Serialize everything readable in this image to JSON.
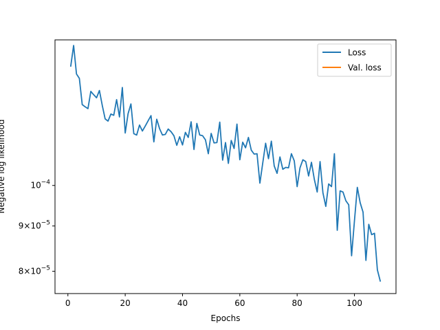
{
  "chart_data": {
    "type": "line",
    "xlabel": "Epochs",
    "ylabel": "Negative log likelihood",
    "y_scale": "log",
    "grid": false,
    "legend_placement": "top-right",
    "xlim": [
      -4.5,
      114.5
    ],
    "ylim": [
      7.55e-05,
      0.000146
    ],
    "x_ticks": [
      0,
      20,
      40,
      60,
      80,
      100
    ],
    "x_tick_labels": [
      "0",
      "20",
      "40",
      "60",
      "80",
      "100"
    ],
    "y_ticks": [
      8e-05,
      9e-05,
      0.0001
    ],
    "y_tick_labels": [
      {
        "base": "8×10",
        "exp": "−5"
      },
      {
        "base": "9×10",
        "exp": "−5"
      },
      {
        "base": "10",
        "exp": "−4"
      }
    ],
    "series": [
      {
        "name": "Loss",
        "color": "#1f77b4",
        "x": [
          1,
          2,
          3,
          4,
          5,
          6,
          7,
          8,
          9,
          10,
          11,
          12,
          13,
          14,
          15,
          16,
          17,
          18,
          19,
          20,
          21,
          22,
          23,
          24,
          25,
          26,
          27,
          28,
          29,
          30,
          31,
          32,
          33,
          34,
          35,
          36,
          37,
          38,
          39,
          40,
          41,
          42,
          43,
          44,
          45,
          46,
          47,
          48,
          49,
          50,
          51,
          52,
          53,
          54,
          55,
          56,
          57,
          58,
          59,
          60,
          61,
          62,
          63,
          64,
          65,
          66,
          67,
          68,
          69,
          70,
          71,
          72,
          73,
          74,
          75,
          76,
          77,
          78,
          79,
          80,
          81,
          82,
          83,
          84,
          85,
          86,
          87,
          88,
          89,
          90,
          91,
          92,
          93,
          94,
          95,
          96,
          97,
          98,
          99,
          100,
          101,
          102,
          103,
          104,
          105,
          106,
          107,
          108,
          109
        ],
        "values": [
          0.0001364,
          0.0001439,
          0.0001336,
          0.0001321,
          0.0001234,
          0.0001227,
          0.0001221,
          0.0001277,
          0.0001266,
          0.0001256,
          0.000128,
          0.0001231,
          0.0001189,
          0.0001182,
          0.0001204,
          0.00012,
          0.000125,
          0.0001195,
          0.000129,
          0.0001146,
          0.0001205,
          0.0001236,
          0.0001144,
          0.000114,
          0.000117,
          0.0001152,
          0.0001167,
          0.0001183,
          0.0001199,
          0.000112,
          0.0001188,
          0.0001159,
          0.000114,
          0.0001142,
          0.0001158,
          0.000115,
          0.0001138,
          0.000111,
          0.0001135,
          0.0001111,
          0.0001148,
          0.0001133,
          0.000118,
          0.0001098,
          0.0001175,
          0.000114,
          0.0001138,
          0.0001126,
          0.0001086,
          0.0001145,
          0.0001117,
          0.0001118,
          0.0001179,
          0.0001068,
          0.0001118,
          0.0001059,
          0.0001124,
          0.0001101,
          0.0001173,
          0.0001069,
          0.0001119,
          0.0001103,
          0.0001133,
          0.0001096,
          0.0001085,
          0.0001086,
          0.0001006,
          0.000106,
          0.0001116,
          0.0001072,
          0.0001122,
          0.0001052,
          0.0001032,
          0.0001077,
          0.0001043,
          0.0001048,
          0.0001047,
          0.0001086,
          0.0001066,
          9.97e-05,
          0.0001047,
          0.0001069,
          0.0001064,
          0.0001025,
          0.0001062,
          0.0001016,
          9.83e-05,
          0.0001064,
          9.81e-05,
          9.47e-05,
          0.0001004,
          9.97e-05,
          0.0001086,
          8.9e-05,
          9.86e-05,
          9.83e-05,
          9.61e-05,
          9.51e-05,
          8.33e-05,
          9.12e-05,
          9.95e-05,
          9.56e-05,
          9.33e-05,
          8.23e-05,
          9.04e-05,
          8.8e-05,
          8.83e-05,
          8.03e-05,
          7.8e-05
        ]
      },
      {
        "name": "Val. loss",
        "color": "#ff7f0e",
        "x": [],
        "values": []
      }
    ]
  }
}
